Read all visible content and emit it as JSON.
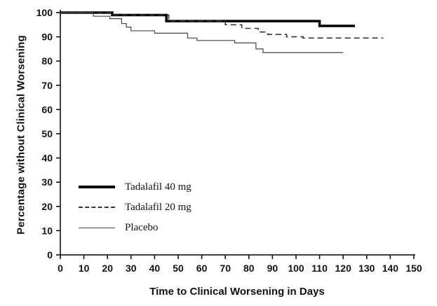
{
  "figure": {
    "background": "#ffffff",
    "axis_color": "#000000"
  },
  "chart_data": {
    "type": "line",
    "subtype": "kaplan-meier-step",
    "title": "",
    "xlabel": "Time to Clinical Worsening in Days",
    "ylabel": "Percentage without Clinical Worsening",
    "xlim": [
      0,
      150
    ],
    "ylim": [
      0,
      100
    ],
    "xticks": [
      0,
      10,
      20,
      30,
      40,
      50,
      60,
      70,
      80,
      90,
      100,
      110,
      120,
      130,
      140,
      150
    ],
    "yticks": [
      0,
      10,
      20,
      30,
      40,
      50,
      60,
      70,
      80,
      90,
      100
    ],
    "grid": false,
    "legend_position": "inside-lower-left",
    "series": [
      {
        "name": "Tadalafil 40 mg",
        "style": "solid-thick",
        "color": "#000000",
        "step": true,
        "points": [
          [
            0,
            100
          ],
          [
            22,
            99
          ],
          [
            45,
            96.5
          ],
          [
            110,
            94.5
          ],
          [
            125,
            94.5
          ]
        ]
      },
      {
        "name": "Tadalafil 20 mg",
        "style": "dashed",
        "color": "#333333",
        "step": true,
        "points": [
          [
            0,
            100
          ],
          [
            22,
            99
          ],
          [
            46,
            96.5
          ],
          [
            70,
            95
          ],
          [
            77,
            93.5
          ],
          [
            84,
            92
          ],
          [
            88,
            91
          ],
          [
            96,
            90
          ],
          [
            103,
            89.5
          ],
          [
            137,
            89.5
          ]
        ]
      },
      {
        "name": "Placebo",
        "style": "solid-thin",
        "color": "#444444",
        "step": true,
        "points": [
          [
            0,
            100
          ],
          [
            14,
            98.5
          ],
          [
            21,
            97.5
          ],
          [
            26,
            95.5
          ],
          [
            28,
            94
          ],
          [
            30,
            92.5
          ],
          [
            40,
            91.5
          ],
          [
            54,
            89.5
          ],
          [
            58,
            88.5
          ],
          [
            74,
            87.5
          ],
          [
            83,
            85
          ],
          [
            86,
            83.5
          ],
          [
            120,
            83.5
          ]
        ]
      }
    ]
  }
}
